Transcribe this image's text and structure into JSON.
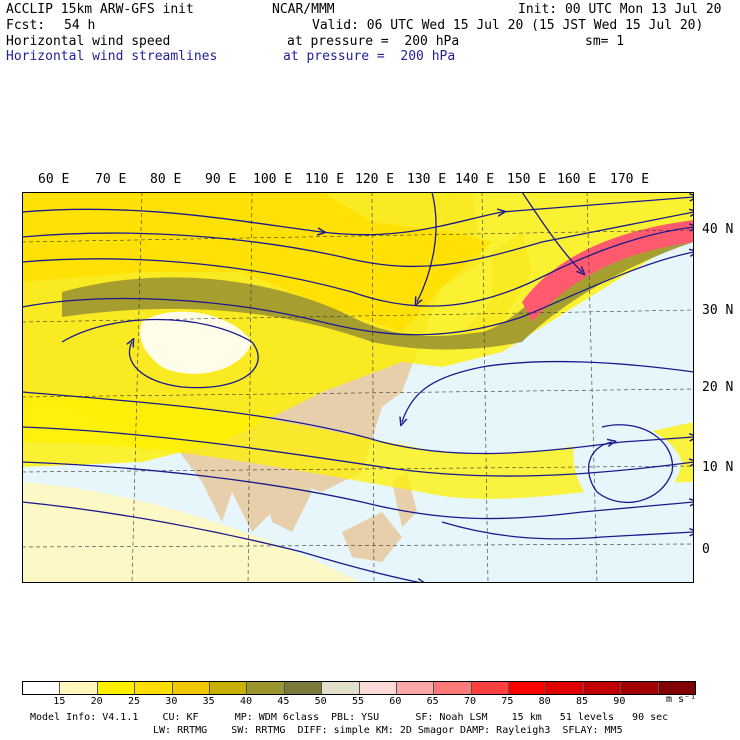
{
  "header": {
    "model": "ACCLIP 15km ARW-GFS init",
    "org": "NCAR/MMM",
    "init": "Init: 00 UTC Mon 13 Jul 20",
    "fcst_label": "Fcst:",
    "fcst_value": "54 h",
    "valid": "Valid: 06 UTC Wed 15 Jul 20 (15 JST Wed 15 Jul 20)",
    "field1": "Horizontal wind speed",
    "field1_level": "at pressure =  200 hPa",
    "smoothing": "sm= 1",
    "field2": "Horizontal wind streamlines",
    "field2_level": "at pressure =  200 hPa"
  },
  "axes": {
    "lon_labels": [
      "60 E",
      "70 E",
      "80 E",
      "90 E",
      "100 E",
      "110 E",
      "120 E",
      "130 E",
      "140 E",
      "150 E",
      "160 E",
      "170 E"
    ],
    "lat_labels": [
      "40 N",
      "30 N",
      "20 N",
      "10 N",
      "0"
    ]
  },
  "colorbar": {
    "ticks": [
      "15",
      "20",
      "25",
      "30",
      "35",
      "40",
      "45",
      "50",
      "55",
      "60",
      "65",
      "70",
      "75",
      "80",
      "85",
      "90"
    ],
    "units": "m s⁻¹",
    "colors": [
      "#ffffff",
      "#fff9c0",
      "#fff000",
      "#ffdf00",
      "#f0c800",
      "#c8b000",
      "#9c9630",
      "#7a7a3a",
      "#e2e0cc",
      "#ffd8d8",
      "#ffa8a8",
      "#ff7a7a",
      "#ff4040",
      "#ff0000",
      "#e00000",
      "#c00000",
      "#a00000",
      "#800000"
    ]
  },
  "footer": {
    "line1": "Model Info: V4.1.1    CU: KF      MP: WDM 6class  PBL: YSU      SF: Noah LSM    15 km   51 levels   90 sec",
    "line2": "LW: RRTMG    SW: RRTMG  DIFF: simple KM: 2D Smagor DAMP: Rayleigh3  SFLAY: MM5"
  },
  "map_style": {
    "ocean": "#e6f6fb",
    "land": "#e6cfaa",
    "streamline": "#1a1a8c",
    "jet_core": "#ff5a6e",
    "jet_strong": "#a09a40"
  }
}
